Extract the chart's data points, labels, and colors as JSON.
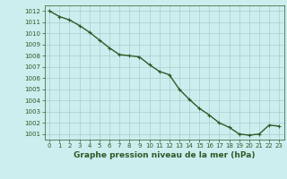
{
  "x": [
    0,
    1,
    2,
    3,
    4,
    5,
    6,
    7,
    8,
    9,
    10,
    11,
    12,
    13,
    14,
    15,
    16,
    17,
    18,
    19,
    20,
    21,
    22,
    23
  ],
  "y": [
    1012.0,
    1011.5,
    1011.2,
    1010.7,
    1010.1,
    1009.4,
    1008.7,
    1008.1,
    1008.0,
    1007.9,
    1007.2,
    1006.6,
    1006.3,
    1005.0,
    1004.1,
    1003.3,
    1002.7,
    1002.0,
    1001.6,
    1001.0,
    1000.9,
    1001.0,
    1001.8,
    1001.7
  ],
  "line_color": "#2d5a27",
  "marker_color": "#2d5a27",
  "bg_color": "#cceeee",
  "grid_color": "#aacccc",
  "xlabel": "Graphe pression niveau de la mer (hPa)",
  "xlabel_color": "#2d5a27",
  "tick_color": "#2d5a27",
  "ylim": [
    1000.5,
    1012.5
  ],
  "xlim": [
    -0.5,
    23.5
  ],
  "yticks": [
    1001,
    1002,
    1003,
    1004,
    1005,
    1006,
    1007,
    1008,
    1009,
    1010,
    1011,
    1012
  ],
  "xticks": [
    0,
    1,
    2,
    3,
    4,
    5,
    6,
    7,
    8,
    9,
    10,
    11,
    12,
    13,
    14,
    15,
    16,
    17,
    18,
    19,
    20,
    21,
    22,
    23
  ],
  "marker_size": 3.5,
  "line_width": 1.0,
  "tick_fontsize": 5.0,
  "xlabel_fontsize": 6.5
}
